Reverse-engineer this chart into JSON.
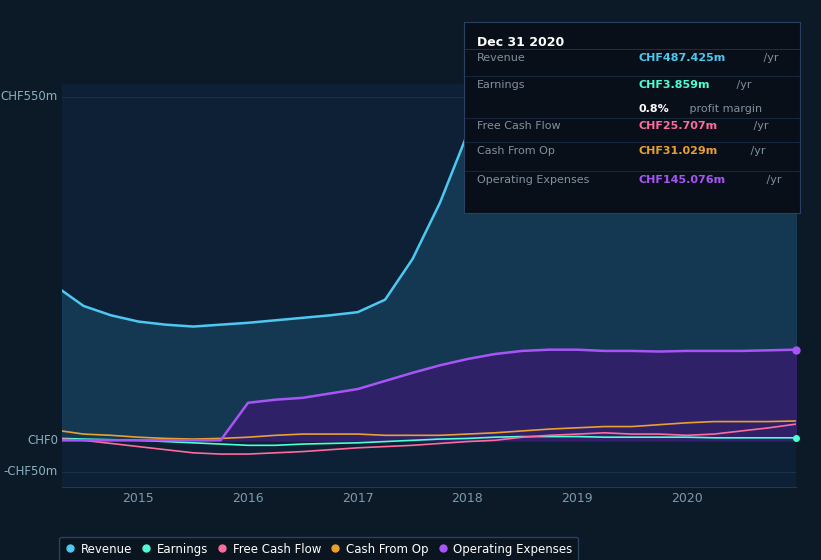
{
  "bg_color": "#0c1a28",
  "plot_bg_color": "#0d2035",
  "title": "Dec 31 2020",
  "ylabel_top": "CHF550m",
  "ylabel_zero": "CHF0",
  "ylabel_neg": "-CHF50m",
  "years": [
    2014.3,
    2014.5,
    2014.75,
    2015.0,
    2015.25,
    2015.5,
    2015.75,
    2016.0,
    2016.25,
    2016.5,
    2016.75,
    2017.0,
    2017.25,
    2017.5,
    2017.75,
    2018.0,
    2018.25,
    2018.5,
    2018.75,
    2019.0,
    2019.25,
    2019.5,
    2019.75,
    2020.0,
    2020.25,
    2020.5,
    2020.75,
    2021.0
  ],
  "revenue": [
    240,
    215,
    200,
    190,
    185,
    182,
    185,
    188,
    192,
    196,
    200,
    205,
    225,
    290,
    380,
    490,
    515,
    510,
    500,
    495,
    490,
    488,
    482,
    475,
    470,
    468,
    475,
    487
  ],
  "earnings": [
    3,
    2,
    1,
    0,
    -2,
    -4,
    -6,
    -8,
    -8,
    -6,
    -5,
    -4,
    -2,
    0,
    2,
    3,
    5,
    6,
    6,
    6,
    5,
    5,
    5,
    5,
    4,
    4,
    4,
    4
  ],
  "free_cash_flow": [
    2,
    0,
    -5,
    -10,
    -15,
    -20,
    -22,
    -22,
    -20,
    -18,
    -15,
    -12,
    -10,
    -8,
    -5,
    -2,
    0,
    5,
    8,
    10,
    12,
    10,
    10,
    8,
    10,
    15,
    20,
    26
  ],
  "cash_from_op": [
    15,
    10,
    8,
    5,
    3,
    2,
    3,
    5,
    8,
    10,
    10,
    10,
    8,
    8,
    8,
    10,
    12,
    15,
    18,
    20,
    22,
    22,
    25,
    28,
    30,
    30,
    30,
    31
  ],
  "operating_expenses": [
    0,
    0,
    0,
    0,
    0,
    0,
    0,
    60,
    65,
    68,
    75,
    82,
    95,
    108,
    120,
    130,
    138,
    143,
    145,
    145,
    143,
    143,
    142,
    143,
    143,
    143,
    144,
    145
  ],
  "revenue_color": "#4dc8f0",
  "earnings_color": "#4dffd4",
  "free_cash_flow_color": "#ff6b9d",
  "cash_from_op_color": "#e8a030",
  "operating_expenses_color": "#a855f7",
  "fill_revenue_color": "#1a4a6b",
  "fill_op_expenses_color": "#3b1870",
  "legend_bg": "#0a1520",
  "info_box_bg": "#080f18",
  "revenue_value": "CHF487.425m",
  "earnings_value": "CHF3.859m",
  "profit_margin": "0.8%",
  "fcf_value": "CHF25.707m",
  "cash_op_value": "CHF31.029m",
  "op_exp_value": "CHF145.076m",
  "ylim_min": -75,
  "ylim_max": 570,
  "grid_color": "#1e3a50"
}
